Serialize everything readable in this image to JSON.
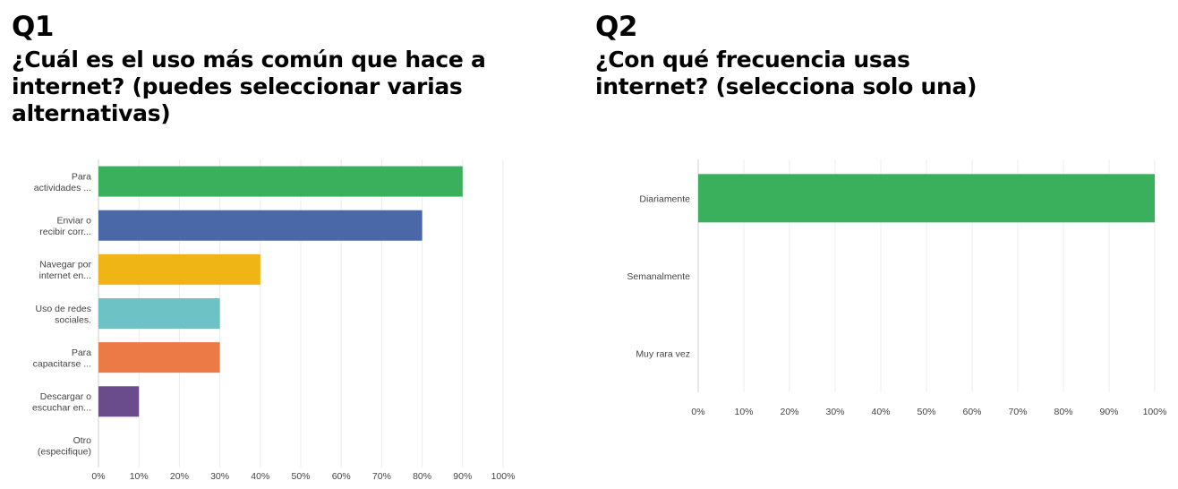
{
  "chart_data": [
    {
      "type": "bar",
      "orientation": "horizontal",
      "question_number": "Q1",
      "title_lines": [
        "¿Cuál es el uso más común que hace a",
        "internet? (puedes seleccionar varias",
        "alternativas)"
      ],
      "categories": [
        [
          "Para",
          "actividades ..."
        ],
        [
          "Enviar o",
          "recibir corr..."
        ],
        [
          "Navegar por",
          "internet en..."
        ],
        [
          "Uso de redes",
          "sociales."
        ],
        [
          "Para",
          "capacitarse ..."
        ],
        [
          "Descargar o",
          "escuchar en..."
        ],
        [
          "Otro",
          "(especifique)"
        ]
      ],
      "values": [
        90,
        80,
        40,
        30,
        30,
        10,
        0
      ],
      "colors": [
        "#3aaf5c",
        "#4a67a8",
        "#eeb515",
        "#6dc2c6",
        "#ec7a47",
        "#6a4c8c",
        "#999999"
      ],
      "xlim": [
        0,
        100
      ],
      "xticks": [
        "0%",
        "10%",
        "20%",
        "30%",
        "40%",
        "50%",
        "60%",
        "70%",
        "80%",
        "90%",
        "100%"
      ],
      "grid": true
    },
    {
      "type": "bar",
      "orientation": "horizontal",
      "question_number": "Q2",
      "title_lines": [
        "¿Con qué frecuencia usas",
        "internet? (selecciona solo una)"
      ],
      "categories": [
        [
          "Diariamente"
        ],
        [
          "Semanalmente"
        ],
        [
          "Muy rara vez"
        ]
      ],
      "values": [
        100,
        0,
        0
      ],
      "colors": [
        "#3aaf5c",
        "#4a67a8",
        "#eeb515"
      ],
      "xlim": [
        0,
        100
      ],
      "xticks": [
        "0%",
        "10%",
        "20%",
        "30%",
        "40%",
        "50%",
        "60%",
        "70%",
        "80%",
        "90%",
        "100%"
      ],
      "grid": true
    }
  ]
}
